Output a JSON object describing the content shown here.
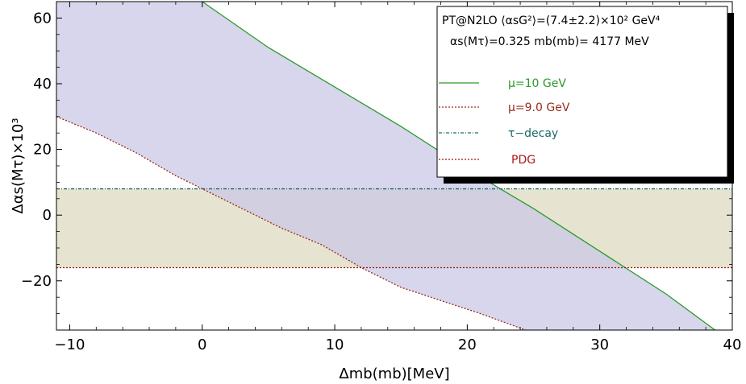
{
  "chart_data": {
    "type": "line",
    "title_line1": "PT@N2LO ⟨α<tspan baseline-shift='sub' font-size='10'>s</tspan>G²⟩=(7.4±2.2)×10² GeV⁴",
    "title_line1_text": "PT@N2LO ⟨αsG²⟩=(7.4±2.2)×10² GeV⁴",
    "title_line2_text": "αs(Mτ)=0.325  mb(mb)= 4177 MeV",
    "xlabel": "Δmb(mb)[MeV]",
    "ylabel": "Δαs(Mτ)×10³",
    "xlim": [
      -11,
      40
    ],
    "ylim": [
      -35,
      65
    ],
    "x_ticks": [
      -10,
      0,
      10,
      20,
      30,
      40
    ],
    "y_ticks": [
      -20,
      0,
      20,
      40,
      60
    ],
    "series": [
      {
        "name": "μ=10 GeV",
        "color": "#2a9a2a",
        "dash": "solid",
        "points": [
          [
            0,
            65
          ],
          [
            5,
            51
          ],
          [
            10,
            39
          ],
          [
            15,
            27
          ],
          [
            20,
            14
          ],
          [
            25,
            2
          ],
          [
            30,
            -11
          ],
          [
            35,
            -24
          ],
          [
            38.7,
            -35
          ]
        ]
      },
      {
        "name": "μ=9.0 GeV",
        "color": "#9b2a1a",
        "dash": "dotted",
        "points": [
          [
            -11,
            30
          ],
          [
            -8,
            25
          ],
          [
            -5,
            19
          ],
          [
            -2,
            12
          ],
          [
            0,
            8
          ],
          [
            3,
            2
          ],
          [
            6,
            -4
          ],
          [
            9,
            -9
          ],
          [
            12,
            -16
          ],
          [
            15,
            -22
          ],
          [
            18,
            -26
          ],
          [
            21,
            -30
          ],
          [
            24.4,
            -35
          ]
        ]
      },
      {
        "name": "τ−decay",
        "color": "#1a6a6a",
        "dash": "dashdot",
        "points": [
          [
            -11,
            8
          ],
          [
            40,
            8
          ]
        ]
      },
      {
        "name": "PDG",
        "color": "#a01010",
        "dash": "dotted",
        "points": [
          [
            -11,
            -16
          ],
          [
            40,
            -16
          ]
        ]
      }
    ],
    "bands": [
      {
        "name": "τ−decay band",
        "color": "#e2dfc8",
        "y_range": [
          -16,
          8
        ]
      }
    ],
    "fill_between": {
      "upper": "μ=10 GeV",
      "lower": "μ=9.0 GeV",
      "color": "#c9c8e6"
    },
    "legend_label_colors": [
      "#2a9a2a",
      "#9b2a1a",
      "#1a6a6a",
      "#b01818"
    ],
    "legend_placement": "top-right",
    "grid": false
  }
}
